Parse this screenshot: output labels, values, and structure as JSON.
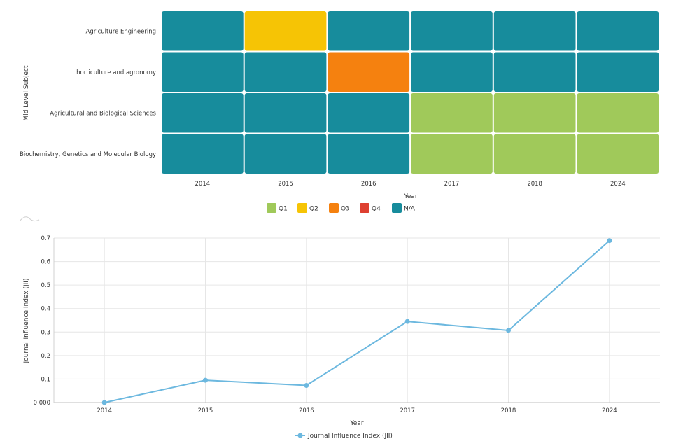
{
  "colors": {
    "Q1": "#a0c95a",
    "Q2": "#f6c405",
    "Q3": "#f5810f",
    "Q4": "#de4031",
    "N/A": "#178c9c",
    "line": "#6cb8df",
    "grid": "#e6e6e6"
  },
  "chart_data": [
    {
      "type": "heatmap",
      "ylabel": "Mid Level Subject",
      "xlabel": "Year",
      "x": [
        "2014",
        "2015",
        "2016",
        "2017",
        "2018",
        "2024"
      ],
      "y": [
        "Agriculture Engineering",
        "horticulture and agronomy",
        "Agricultural and Biological Sciences",
        "Biochemistry, Genetics and Molecular Biology"
      ],
      "values": [
        [
          "N/A",
          "Q2",
          "N/A",
          "N/A",
          "N/A",
          "N/A"
        ],
        [
          "N/A",
          "N/A",
          "Q3",
          "N/A",
          "N/A",
          "N/A"
        ],
        [
          "N/A",
          "N/A",
          "N/A",
          "Q1",
          "Q1",
          "Q1"
        ],
        [
          "N/A",
          "N/A",
          "N/A",
          "Q1",
          "Q1",
          "Q1"
        ]
      ],
      "legend": [
        "Q1",
        "Q2",
        "Q3",
        "Q4",
        "N/A"
      ],
      "legend_position": "bottom"
    },
    {
      "type": "line",
      "xlabel": "Year",
      "ylabel": "Journal Influence Index (JII)",
      "x": [
        "2014",
        "2015",
        "2016",
        "2017",
        "2018",
        "2024"
      ],
      "series": [
        {
          "name": "Journal Influence Index (JII)",
          "values": [
            0.0,
            0.095,
            0.073,
            0.345,
            0.307,
            0.689
          ]
        }
      ],
      "ylim": [
        0,
        0.7
      ],
      "yticks": [
        "0.000",
        "0.1",
        "0.2",
        "0.3",
        "0.4",
        "0.5",
        "0.6",
        "0.7"
      ],
      "grid": true,
      "legend_position": "bottom"
    }
  ]
}
